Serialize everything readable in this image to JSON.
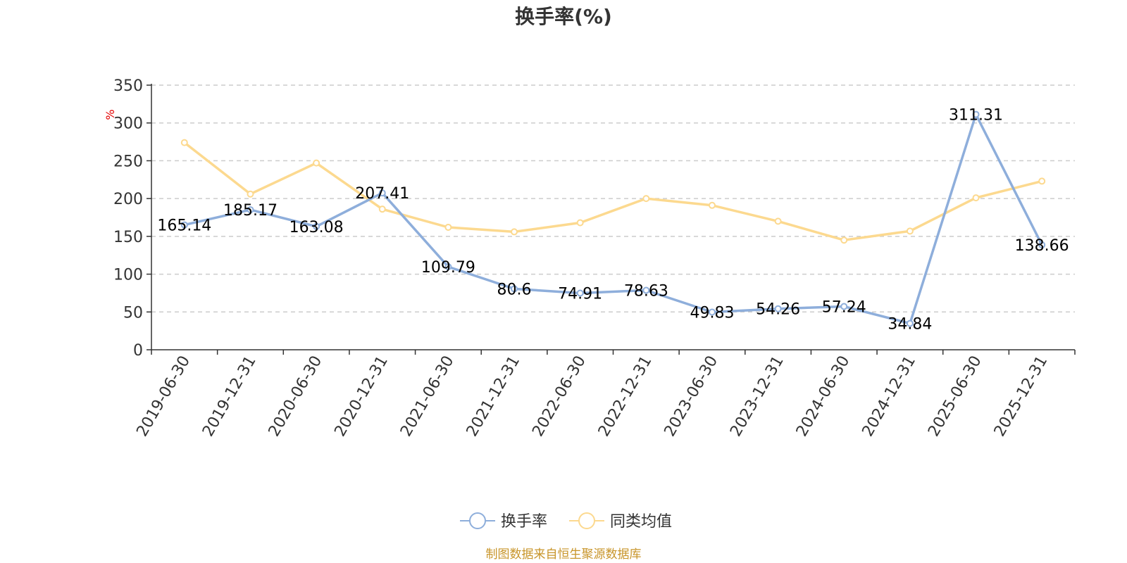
{
  "chart_data": {
    "type": "line",
    "title": "换手率(%)",
    "ylabel": "%",
    "ylim": [
      0,
      350
    ],
    "yticks": [
      0,
      50,
      100,
      150,
      200,
      250,
      300,
      350
    ],
    "grid": true,
    "categories": [
      "2019-06-30",
      "2019-12-31",
      "2020-06-30",
      "2020-12-31",
      "2021-06-30",
      "2021-12-31",
      "2022-06-30",
      "2022-12-31",
      "2023-06-30",
      "2023-12-31",
      "2024-06-30",
      "2024-12-31",
      "2025-06-30",
      "2025-12-31"
    ],
    "series": [
      {
        "name": "换手率",
        "color": "#8eaedb",
        "values": [
          165.14,
          185.17,
          163.08,
          207.41,
          109.79,
          80.6,
          74.91,
          78.63,
          49.83,
          54.26,
          57.24,
          34.84,
          311.31,
          138.66
        ],
        "labels": [
          "165.14",
          "185.17",
          "163.08",
          "207.41",
          "109.79",
          "80.6",
          "74.91",
          "78.63",
          "49.83",
          "54.26",
          "57.24",
          "34.84",
          "311.31",
          "138.66"
        ],
        "show_labels": true
      },
      {
        "name": "同类均值",
        "color": "#fcd98f",
        "values": [
          274,
          206,
          247,
          186,
          162,
          156,
          168,
          200,
          191,
          170,
          145,
          157,
          201,
          223
        ],
        "show_labels": false
      }
    ],
    "legend_position": "bottom-center",
    "source_text": "制图数据来自恒生聚源数据库"
  },
  "colors": {
    "axis": "#333333",
    "grid": "#cccccc",
    "unit": "#e30000",
    "source": "#c8952a"
  }
}
